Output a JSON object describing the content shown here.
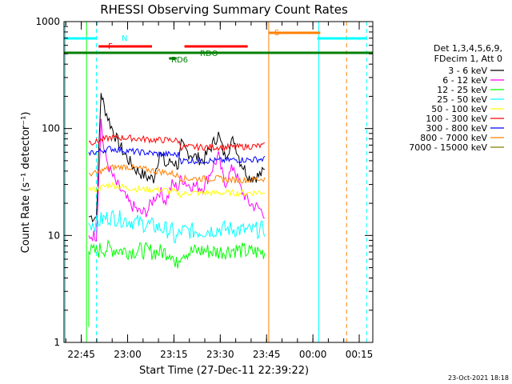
{
  "chart_data": {
    "type": "line",
    "title": "RHESSI Observing Summary Count Rates",
    "xlabel": "Start Time (27-Dec-11 22:39:22)",
    "ylabel": "Count Rate (s⁻¹ detector⁻¹)",
    "yscale": "log",
    "ylim": [
      1,
      1000
    ],
    "xlim_minutes": [
      0,
      100
    ],
    "x_ticks": [
      {
        "label": "22:45",
        "value": 5.6
      },
      {
        "label": "23:00",
        "value": 20.6
      },
      {
        "label": "23:15",
        "value": 35.6
      },
      {
        "label": "23:30",
        "value": 50.6
      },
      {
        "label": "23:45",
        "value": 65.6
      },
      {
        "label": "00:00",
        "value": 80.6
      },
      {
        "label": "00:15",
        "value": 95.6
      }
    ],
    "y_ticks": [
      {
        "label": "1",
        "value": 1
      },
      {
        "label": "10",
        "value": 10
      },
      {
        "label": "100",
        "value": 100
      },
      {
        "label": "1000",
        "value": 1000
      }
    ],
    "legend_header": [
      "Det 1,3,4,5,6,9,",
      "FDecim 1, Att 0"
    ],
    "series": [
      {
        "name": "3 - 6 keV",
        "color": "#000000",
        "x": [
          8,
          10.5,
          12,
          13,
          15,
          17,
          19,
          21,
          23,
          25,
          27,
          29,
          31,
          33,
          35,
          37,
          38,
          40,
          45,
          50,
          52,
          55,
          57,
          60,
          63,
          65
        ],
        "values": [
          15,
          15,
          220,
          160,
          110,
          80,
          62,
          50,
          42,
          38,
          35,
          34,
          60,
          45,
          50,
          45,
          70,
          60,
          50,
          88,
          55,
          80,
          50,
          35,
          36,
          40
        ]
      },
      {
        "name": "6 - 12 keV",
        "color": "#ff00ff",
        "x": [
          8,
          10.5,
          12,
          13,
          15,
          17,
          19,
          21,
          23,
          25,
          27,
          29,
          31,
          33,
          35,
          37,
          38,
          40,
          45,
          50,
          52,
          55,
          57,
          60,
          63,
          65
        ],
        "values": [
          10,
          10,
          120,
          60,
          40,
          30,
          25,
          20,
          18,
          16,
          17,
          22,
          26,
          21,
          30,
          28,
          35,
          30,
          28,
          55,
          30,
          45,
          28,
          20,
          18,
          16
        ]
      },
      {
        "name": "12 - 25 keV",
        "color": "#00ff00",
        "x": [
          8,
          10.5,
          12,
          15,
          20,
          25,
          30,
          35,
          36,
          38,
          40,
          45,
          50,
          55,
          60,
          65
        ],
        "values": [
          7,
          7,
          7.5,
          7.5,
          7.2,
          7.2,
          7,
          7,
          5,
          7,
          7,
          7.2,
          7,
          7.4,
          7,
          7
        ]
      },
      {
        "name": "25 - 50 keV",
        "color": "#00ffff",
        "x": [
          8,
          10.5,
          12,
          15,
          20,
          25,
          30,
          35,
          36,
          38,
          40,
          45,
          50,
          55,
          60,
          65
        ],
        "values": [
          13,
          13,
          14,
          15,
          14,
          13,
          12,
          11,
          9,
          11,
          11,
          11,
          11.5,
          11.5,
          11,
          11.5
        ]
      },
      {
        "name": "50 - 100 keV",
        "color": "#ffff00",
        "x": [
          8,
          10.5,
          12,
          15,
          20,
          25,
          30,
          35,
          38,
          40,
          45,
          50,
          55,
          60,
          65
        ],
        "values": [
          27,
          27,
          28,
          30,
          28,
          27,
          27,
          26,
          24,
          25,
          25,
          25,
          25,
          25,
          25.5
        ]
      },
      {
        "name": "100 - 300 keV",
        "color": "#ff0000",
        "x": [
          8,
          10.5,
          12,
          15,
          20,
          25,
          30,
          35,
          37,
          38,
          40,
          45,
          50,
          55,
          60,
          65
        ],
        "values": [
          75,
          75,
          78,
          82,
          82,
          80,
          78,
          78,
          77,
          67,
          67,
          67,
          67,
          67,
          68,
          69
        ]
      },
      {
        "name": "300 - 800 keV",
        "color": "#0000ff",
        "x": [
          8,
          10.5,
          12,
          15,
          20,
          25,
          30,
          35,
          37,
          38,
          40,
          45,
          50,
          55,
          60,
          65
        ],
        "values": [
          60,
          60,
          62,
          65,
          62,
          60,
          58,
          57,
          57,
          50,
          50,
          50,
          50,
          51,
          51,
          52
        ]
      },
      {
        "name": "800 - 7000 keV",
        "color": "#ff8000",
        "x": [
          8,
          10.5,
          12,
          15,
          20,
          25,
          30,
          35,
          37,
          38,
          40,
          45,
          50,
          55,
          60,
          65
        ],
        "values": [
          38,
          38,
          40,
          43,
          44,
          42,
          40,
          38,
          36,
          34,
          34,
          34,
          34,
          33,
          33,
          34
        ]
      },
      {
        "name": "7000 - 15000 keV",
        "color": "#808000",
        "x": [],
        "values": []
      }
    ],
    "flag_bars": [
      {
        "label": "N",
        "color": "#00ffff",
        "row": 1,
        "segments": [
          [
            0,
            10.5
          ],
          [
            82,
            98
          ]
        ]
      },
      {
        "label": "F",
        "color": "#ff0000",
        "row": 2,
        "segments": [
          [
            11.2,
            28.5
          ],
          [
            39,
            59.5
          ]
        ]
      },
      {
        "label": "S",
        "color": "#ff8000",
        "row": 0,
        "segments": [
          [
            66.3,
            83
          ]
        ]
      },
      {
        "label": "",
        "color": "#008000",
        "row": 3,
        "segments": [
          [
            0,
            100
          ]
        ]
      },
      {
        "label": "RD6",
        "color": "#008000",
        "row": 4,
        "segments": [
          [
            34,
            36.5
          ]
        ]
      },
      {
        "label": "RDO",
        "color": "#008000",
        "row": 3,
        "segments": []
      }
    ],
    "vlines": [
      {
        "x": 0.4,
        "color": "#00ffff",
        "dashed": false
      },
      {
        "x": 10.5,
        "color": "#00ffff",
        "dashed": true
      },
      {
        "x": 7.3,
        "color": "#00ff00",
        "dashed": false
      },
      {
        "x": 66.3,
        "color": "#ff8000",
        "dashed": false
      },
      {
        "x": 82.5,
        "color": "#00ffff",
        "dashed": false
      },
      {
        "x": 91.5,
        "color": "#ff8000",
        "dashed": true
      },
      {
        "x": 98,
        "color": "#00ffff",
        "dashed": true
      }
    ],
    "footer_date": "23-Oct-2021 18:18"
  }
}
